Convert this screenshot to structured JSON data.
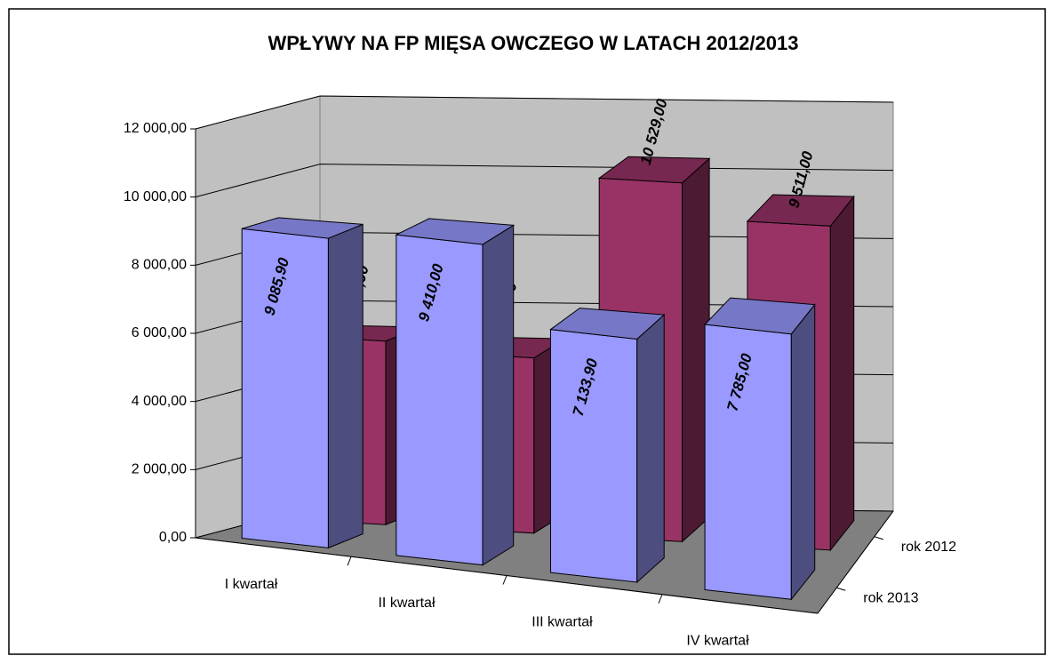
{
  "chart_data": {
    "type": "bar3d",
    "title": "WPŁYWY NA FP MIĘSA OWCZEGO W LATACH 2012/2013",
    "categories": [
      "I kwartał",
      "II kwartał",
      "III kwartał",
      "IV kwartał"
    ],
    "series": [
      {
        "name": "rok 2013",
        "color": "#9999ff",
        "values": [
          9085.9,
          9410,
          7133.9,
          7785
        ],
        "value_labels": [
          "9 085,90",
          "9 410,00",
          "7 133,90",
          "7 785,00"
        ]
      },
      {
        "name": "rok 2012",
        "color": "#993366",
        "values": [
          5388,
          5143,
          10529,
          9511
        ],
        "value_labels": [
          "5 388,00",
          "5 143,00",
          "10 529,00",
          "9 511,00"
        ]
      }
    ],
    "ylim": [
      0,
      12000
    ],
    "yticks": [
      {
        "value": 0,
        "label": "0,00"
      },
      {
        "value": 2000,
        "label": "2 000,00"
      },
      {
        "value": 4000,
        "label": "4 000,00"
      },
      {
        "value": 6000,
        "label": "6 000,00"
      },
      {
        "value": 8000,
        "label": "8 000,00"
      },
      {
        "value": 10000,
        "label": "10 000,00"
      },
      {
        "value": 12000,
        "label": "12 000,00"
      }
    ],
    "grid": true
  }
}
